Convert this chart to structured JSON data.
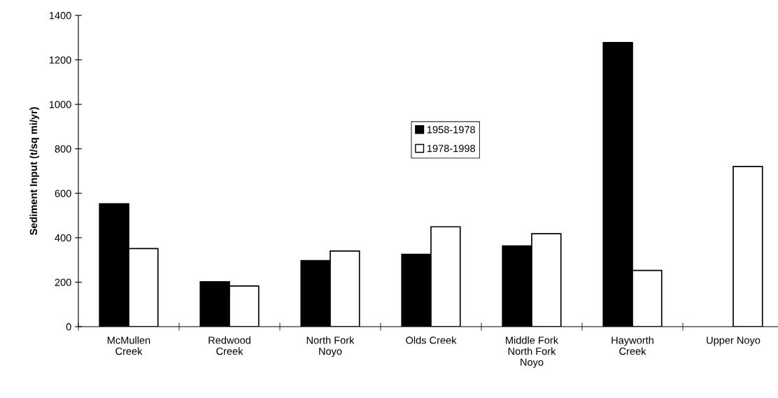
{
  "chart_data": {
    "type": "bar",
    "ylabel": "Sediment Input (t/sq mi/yr)",
    "categories": [
      "McMullen\nCreek",
      "Redwood\nCreek",
      "North Fork\nNoyo",
      "Olds Creek",
      "Middle Fork\nNorth Fork\nNoyo",
      "Hayworth\nCreek",
      "Upper Noyo"
    ],
    "series": [
      {
        "name": "1958-1978",
        "color": "#000000",
        "values": [
          553,
          202,
          297,
          325,
          363,
          1278,
          null
        ]
      },
      {
        "name": "1978-1998",
        "color": "#ffffff",
        "values": [
          351,
          183,
          340,
          449,
          418,
          253,
          720
        ]
      }
    ],
    "ylim": [
      0,
      1400
    ],
    "yticks": [
      0,
      200,
      400,
      600,
      800,
      1000,
      1200,
      1400
    ],
    "grid": false,
    "legend": "center"
  }
}
